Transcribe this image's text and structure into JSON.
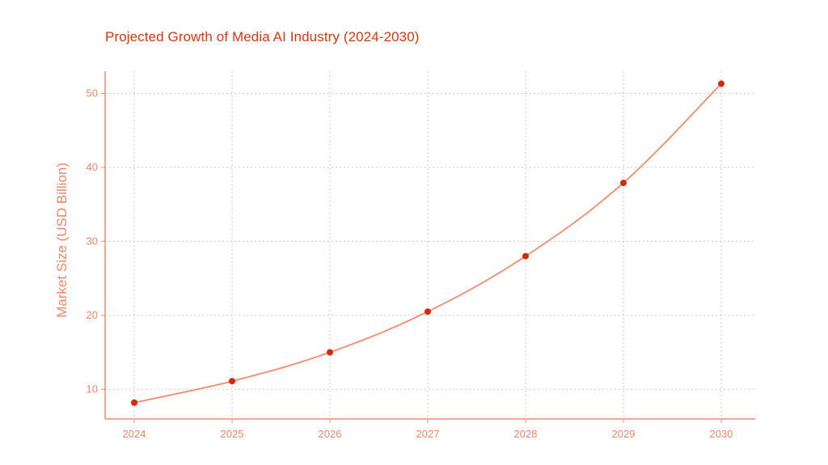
{
  "chart_data": {
    "type": "line",
    "title": "Projected Growth of Media AI Industry (2024-2030)",
    "xlabel": "",
    "ylabel": "Market Size (USD Billion)",
    "categories": [
      "2024",
      "2025",
      "2026",
      "2027",
      "2028",
      "2029",
      "2030"
    ],
    "yticks": [
      10,
      20,
      30,
      40,
      50
    ],
    "ylim": [
      6,
      53
    ],
    "grid": true,
    "series": [
      {
        "name": "Market Size",
        "values": [
          8.2,
          11.1,
          15.0,
          20.5,
          28.0,
          37.9,
          51.3
        ]
      }
    ],
    "colors": {
      "title": "#d13a10",
      "line": "#f28b6e",
      "marker": "#d42a0c",
      "axis": "#f28b6e",
      "grid": "#cfc9c2",
      "tick": "#f0866a"
    }
  }
}
